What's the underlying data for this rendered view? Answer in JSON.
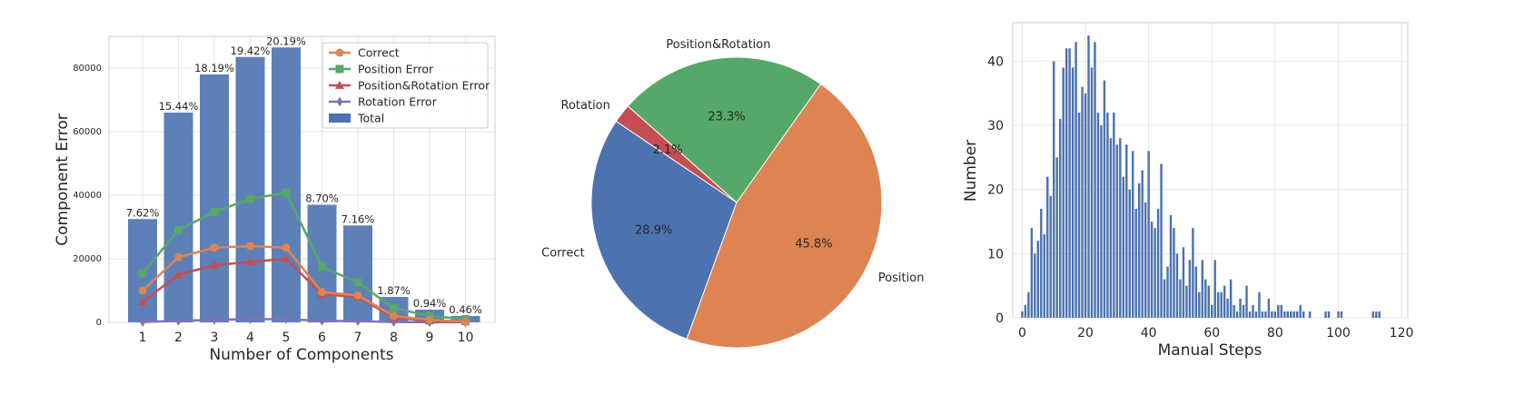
{
  "chart_data": [
    {
      "type": "bar",
      "xlabel": "Number of Components",
      "ylabel": "Component Error",
      "categories": [
        "1",
        "2",
        "3",
        "4",
        "5",
        "6",
        "7",
        "8",
        "9",
        "10"
      ],
      "ylim": [
        0,
        90000
      ],
      "yticks": [
        0,
        20000,
        40000,
        60000,
        80000
      ],
      "yticklabels": [
        "0",
        "20000",
        "40000",
        "60000",
        "80000"
      ],
      "grid": true,
      "legend_position": "top-right",
      "bar_labels": [
        "7.62%",
        "15.44%",
        "18.19%",
        "19.42%",
        "20.19%",
        "8.70%",
        "7.16%",
        "1.87%",
        "0.94%",
        "0.46%"
      ],
      "series": [
        {
          "name": "Correct",
          "kind": "line",
          "marker": "circle",
          "color": "#dd8452",
          "values": [
            10000,
            20500,
            23500,
            24000,
            23500,
            9500,
            8500,
            2000,
            800,
            200
          ]
        },
        {
          "name": "Position Error",
          "kind": "line",
          "marker": "square",
          "color": "#55a868",
          "values": [
            15500,
            29000,
            34800,
            38800,
            40800,
            17500,
            12500,
            4500,
            2000,
            1000
          ]
        },
        {
          "name": "Position&Rotation Error",
          "kind": "line",
          "marker": "triangle",
          "color": "#c44e52",
          "values": [
            6500,
            15000,
            18000,
            19000,
            20000,
            8800,
            8000,
            1500,
            500,
            200
          ]
        },
        {
          "name": "Rotation Error",
          "kind": "line",
          "marker": "diamond",
          "color": "#8172b3",
          "values": [
            100,
            500,
            800,
            1000,
            1000,
            500,
            400,
            100,
            50,
            20
          ]
        },
        {
          "name": "Total",
          "kind": "bar",
          "color": "#4c72b0",
          "values": [
            32500,
            66000,
            78000,
            83500,
            86500,
            37000,
            30500,
            8000,
            4000,
            2000
          ]
        }
      ]
    },
    {
      "type": "pie",
      "slices": [
        {
          "label": "Correct",
          "value": 28.9,
          "pct_label": "28.9%",
          "color": "#4c72b0"
        },
        {
          "label": "Position",
          "value": 45.8,
          "pct_label": "45.8%",
          "color": "#dd8452"
        },
        {
          "label": "Position&Rotation",
          "value": 23.3,
          "pct_label": "23.3%",
          "color": "#55a868"
        },
        {
          "label": "Rotation",
          "value": 2.1,
          "pct_label": "2.1%",
          "color": "#c44e52"
        }
      ],
      "start_angle_deg": 146,
      "direction": "counterclockwise"
    },
    {
      "type": "bar",
      "subtype": "histogram",
      "xlabel": "Manual Steps",
      "ylabel": "Number",
      "xlim": [
        -3,
        122
      ],
      "ylim": [
        0,
        46
      ],
      "xticks": [
        0,
        20,
        40,
        60,
        80,
        100,
        120
      ],
      "xticklabels": [
        "0",
        "20",
        "40",
        "60",
        "80",
        "100",
        "120"
      ],
      "yticks": [
        0,
        10,
        20,
        30,
        40
      ],
      "yticklabels": [
        "0",
        "10",
        "20",
        "30",
        "40"
      ],
      "grid": true,
      "color": "#4c72b0",
      "x": [
        0,
        1,
        2,
        3,
        4,
        5,
        6,
        7,
        8,
        9,
        10,
        11,
        12,
        13,
        14,
        15,
        16,
        17,
        18,
        19,
        20,
        21,
        22,
        23,
        24,
        25,
        26,
        27,
        28,
        29,
        30,
        31,
        32,
        33,
        34,
        35,
        36,
        37,
        38,
        39,
        40,
        41,
        42,
        43,
        44,
        45,
        46,
        47,
        48,
        49,
        50,
        51,
        52,
        53,
        54,
        55,
        56,
        57,
        58,
        59,
        60,
        61,
        62,
        63,
        64,
        65,
        66,
        67,
        68,
        69,
        70,
        71,
        72,
        73,
        74,
        75,
        76,
        77,
        78,
        79,
        80,
        81,
        82,
        83,
        84,
        85,
        86,
        87,
        88,
        89,
        90,
        91,
        92,
        93,
        94,
        95,
        96,
        97,
        98,
        99,
        100,
        101,
        102,
        103,
        104,
        105,
        106,
        107,
        108,
        109,
        110,
        111,
        112,
        113
      ],
      "values": [
        1,
        2,
        4,
        14,
        10,
        12,
        17,
        13,
        22,
        19,
        40,
        25,
        31,
        39,
        42,
        42,
        39,
        43,
        32,
        36,
        35,
        44,
        39,
        43,
        32,
        30,
        37,
        32,
        28,
        32,
        27,
        28,
        22,
        27,
        20,
        26,
        17,
        21,
        23,
        18,
        26,
        15,
        14,
        17,
        24,
        6,
        8,
        16,
        14,
        10,
        6,
        11,
        5,
        9,
        14,
        8,
        4,
        9,
        6,
        5,
        2,
        9,
        4,
        4,
        5,
        3,
        6,
        2,
        1,
        3,
        2,
        5,
        1,
        2,
        1,
        4,
        1,
        1,
        3,
        1,
        1,
        2,
        2,
        1,
        1,
        1,
        1,
        1,
        2,
        1,
        0,
        1,
        0,
        0,
        0,
        0,
        1,
        1,
        0,
        0,
        1,
        1,
        0,
        0,
        0,
        0,
        0,
        0,
        0,
        0,
        0,
        1,
        1,
        1
      ]
    }
  ]
}
